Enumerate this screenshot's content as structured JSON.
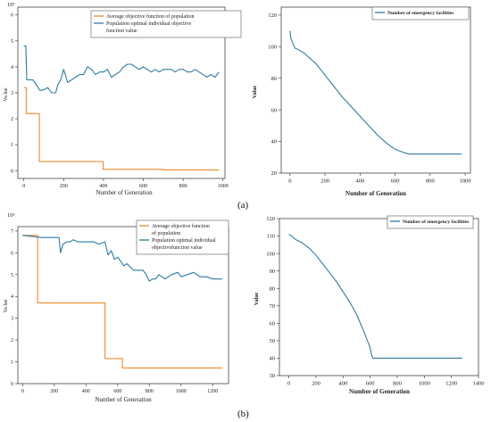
{
  "labels": {
    "a": "(a)",
    "b": "(b)"
  },
  "colors": {
    "orange": "#ED8B2D",
    "blue": "#2C7BA5"
  },
  "chart_data": [
    {
      "id": "a-left",
      "type": "line",
      "exponent_label": "10³",
      "xlabel": "Number of Generation",
      "ylabel": "Va lue",
      "xlim": [
        -30,
        1010
      ],
      "ylim": [
        -0.3,
        6.3
      ],
      "xticks": [
        0,
        200,
        400,
        600,
        800,
        1000
      ],
      "yticks": [
        0,
        1,
        2,
        3,
        4,
        5,
        6
      ],
      "legend_position": "top-right",
      "series": [
        {
          "name": "Average objective function of population",
          "color": "#ED8B2D",
          "x": [
            0,
            12,
            12,
            40,
            40,
            78,
            78,
            398,
            398,
            700,
            700,
            980
          ],
          "y": [
            3.2,
            3.2,
            2.2,
            2.2,
            2.2,
            2.2,
            0.35,
            0.35,
            0.05,
            0.05,
            0.03,
            0.03
          ]
        },
        {
          "name": "Population optimal individual objective function value",
          "color": "#2C7BA5",
          "x": [
            0,
            10,
            15,
            45,
            55,
            80,
            95,
            120,
            140,
            160,
            170,
            185,
            200,
            220,
            240,
            260,
            280,
            300,
            320,
            340,
            360,
            380,
            400,
            420,
            440,
            460,
            480,
            500,
            520,
            540,
            560,
            580,
            600,
            620,
            640,
            660,
            680,
            700,
            720,
            740,
            760,
            780,
            800,
            820,
            840,
            860,
            880,
            900,
            920,
            940,
            960,
            980
          ],
          "y": [
            4.8,
            4.8,
            3.5,
            3.5,
            3.4,
            3.1,
            3.1,
            3.2,
            3.0,
            3.0,
            3.3,
            3.5,
            3.9,
            3.4,
            3.5,
            3.6,
            3.7,
            3.7,
            4.0,
            3.9,
            3.7,
            3.8,
            3.8,
            3.9,
            3.6,
            3.7,
            3.8,
            4.0,
            4.1,
            4.1,
            4.0,
            3.9,
            4.0,
            3.9,
            3.8,
            3.9,
            3.8,
            3.9,
            3.9,
            3.9,
            3.8,
            3.9,
            3.9,
            3.8,
            3.8,
            3.9,
            3.8,
            3.7,
            3.6,
            3.7,
            3.6,
            3.8
          ]
        }
      ]
    },
    {
      "id": "a-right",
      "type": "line",
      "xlabel": "Number of Generation",
      "ylabel": "Value",
      "xlim": [
        -50,
        1030
      ],
      "ylim": [
        20,
        125
      ],
      "xticks": [
        0,
        200,
        400,
        600,
        800,
        1000
      ],
      "yticks": [
        20,
        40,
        60,
        80,
        100,
        120
      ],
      "legend_position": "top-right",
      "series": [
        {
          "name": "Number of emergency facilities",
          "color": "#2C7BA5",
          "x": [
            0,
            5,
            10,
            20,
            30,
            50,
            80,
            100,
            150,
            200,
            250,
            300,
            350,
            400,
            450,
            500,
            550,
            600,
            650,
            680,
            700,
            980
          ],
          "y": [
            110,
            105,
            104,
            101,
            99,
            98,
            96,
            94,
            89,
            82,
            75,
            68,
            62,
            56,
            50,
            44,
            39,
            35,
            33,
            32,
            32,
            32
          ]
        }
      ]
    },
    {
      "id": "b-left",
      "type": "line",
      "exponent_label": "10³",
      "xlabel": "Number of Generation",
      "ylabel": "Va lue",
      "xlim": [
        -30,
        1300
      ],
      "ylim": [
        0,
        7.2
      ],
      "xticks": [
        0,
        200,
        400,
        600,
        800,
        1000,
        1200
      ],
      "yticks": [
        0,
        1,
        2,
        3,
        4,
        5,
        6,
        7
      ],
      "legend_position": "top-right",
      "series": [
        {
          "name": "Average objective function of population",
          "color": "#ED8B2D",
          "x": [
            0,
            95,
            95,
            520,
            520,
            630,
            630,
            1260
          ],
          "y": [
            6.8,
            6.8,
            3.7,
            3.7,
            1.15,
            1.15,
            0.72,
            0.72
          ]
        },
        {
          "name": "Population optimal individual objectivefunction value",
          "color": "#2C7BA5",
          "x": [
            0,
            120,
            150,
            230,
            240,
            255,
            280,
            300,
            320,
            350,
            380,
            420,
            450,
            480,
            520,
            540,
            560,
            580,
            600,
            640,
            660,
            700,
            760,
            780,
            800,
            820,
            840,
            860,
            900,
            940,
            980,
            1000,
            1040,
            1080,
            1120,
            1160,
            1200,
            1230,
            1260
          ],
          "y": [
            6.8,
            6.7,
            6.7,
            6.7,
            6.0,
            6.4,
            6.5,
            6.5,
            6.6,
            6.5,
            6.5,
            6.5,
            6.5,
            6.4,
            6.5,
            5.9,
            6.1,
            5.7,
            5.8,
            5.4,
            5.5,
            5.2,
            5.2,
            5.0,
            4.7,
            4.8,
            4.8,
            5.0,
            4.8,
            5.0,
            5.1,
            4.9,
            5.0,
            5.1,
            4.9,
            4.9,
            4.8,
            4.8,
            4.8
          ]
        }
      ]
    },
    {
      "id": "b-right",
      "type": "line",
      "xlabel": "Number of Generation",
      "ylabel": "Value",
      "xlim": [
        -70,
        1400
      ],
      "ylim": [
        30,
        120
      ],
      "xticks": [
        0,
        200,
        400,
        600,
        800,
        1000,
        1200,
        1400
      ],
      "yticks": [
        30,
        40,
        50,
        60,
        70,
        80,
        90,
        100,
        110,
        120
      ],
      "legend_position": "top-right",
      "series": [
        {
          "name": "Number of emergency facilities",
          "color": "#2C7BA5",
          "x": [
            0,
            20,
            50,
            100,
            150,
            200,
            250,
            300,
            350,
            400,
            450,
            500,
            550,
            580,
            600,
            610,
            620,
            630,
            1280
          ],
          "y": [
            111,
            110,
            108,
            106,
            103,
            99,
            94,
            89,
            84,
            78,
            72,
            65,
            56,
            50,
            46,
            42,
            40,
            40,
            40
          ]
        }
      ]
    }
  ]
}
